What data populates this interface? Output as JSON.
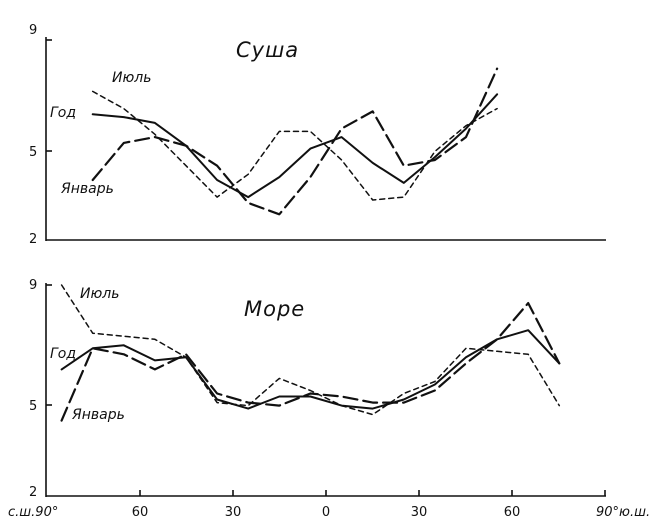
{
  "chart_data": [
    {
      "type": "line",
      "title": "Суша",
      "x": [
        -75,
        -65,
        -55,
        -45,
        -35,
        -25,
        -15,
        -5,
        5,
        15,
        25,
        35,
        45,
        55
      ],
      "xlim": [
        -90,
        90
      ],
      "ylim": [
        2,
        9
      ],
      "yticks": [
        2,
        5,
        9
      ],
      "series": [
        {
          "name": "Год",
          "dash": "solid",
          "values": [
            6.4,
            6.3,
            6.1,
            5.3,
            4.1,
            3.5,
            4.2,
            5.2,
            5.6,
            4.7,
            4.0,
            4.9,
            5.9,
            7.1
          ]
        },
        {
          "name": "Июль",
          "dash": "short",
          "values": [
            7.2,
            6.6,
            5.7,
            4.6,
            3.5,
            4.3,
            5.8,
            5.8,
            4.8,
            3.4,
            3.5,
            5.1,
            6.0,
            6.6
          ]
        },
        {
          "name": "Январь",
          "dash": "long",
          "values": [
            4.1,
            5.4,
            5.6,
            5.3,
            4.6,
            3.3,
            2.9,
            4.2,
            5.9,
            6.5,
            4.6,
            4.8,
            5.6,
            8.0
          ]
        }
      ]
    },
    {
      "type": "line",
      "title": "Море",
      "x": [
        -85,
        -75,
        -65,
        -55,
        -45,
        -35,
        -25,
        -15,
        -5,
        5,
        15,
        25,
        35,
        45,
        55,
        65,
        75
      ],
      "xlim": [
        -90,
        90
      ],
      "ylim": [
        2,
        9
      ],
      "yticks": [
        2,
        5,
        9
      ],
      "xticks": [
        -90,
        -60,
        -30,
        0,
        30,
        60,
        90
      ],
      "xticklabels": [
        "с.ш.90°",
        "60",
        "30",
        "0",
        "30",
        "60",
        "90°ю.ш."
      ],
      "series": [
        {
          "name": "Год",
          "dash": "solid",
          "values": [
            6.2,
            6.9,
            7.0,
            6.5,
            6.6,
            5.2,
            4.9,
            5.3,
            5.3,
            5.0,
            4.9,
            5.2,
            5.7,
            6.6,
            7.2,
            7.5,
            6.4
          ]
        },
        {
          "name": "Июль",
          "dash": "short",
          "values": [
            9.0,
            7.4,
            7.3,
            7.2,
            6.6,
            5.1,
            5.0,
            5.9,
            5.5,
            5.0,
            4.7,
            5.4,
            5.8,
            6.9,
            6.8,
            6.7,
            5.0
          ]
        },
        {
          "name": "Январь",
          "dash": "long",
          "values": [
            4.5,
            6.9,
            6.7,
            6.2,
            6.7,
            5.4,
            5.1,
            5.0,
            5.4,
            5.3,
            5.1,
            5.1,
            5.5,
            6.4,
            7.2,
            8.4,
            6.4
          ]
        }
      ]
    }
  ]
}
